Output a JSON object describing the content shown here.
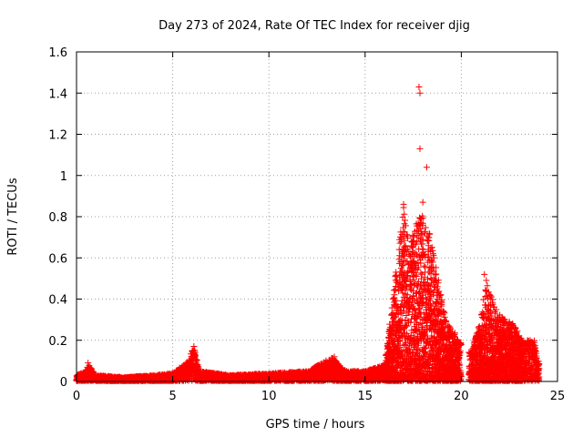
{
  "chart_data": {
    "type": "scatter",
    "title": "Day 273 of 2024, Rate Of TEC Index for receiver djig",
    "xlabel": "GPS time / hours",
    "ylabel": "ROTI / TECUs",
    "xlim": [
      0,
      25
    ],
    "ylim": [
      0,
      1.6
    ],
    "xticks": [
      0,
      5,
      10,
      15,
      20,
      25
    ],
    "yticks": [
      0,
      0.2,
      0.4,
      0.6,
      0.8,
      1,
      1.2,
      1.4,
      1.6
    ],
    "xtick_labels": [
      "0",
      "5",
      "10",
      "15",
      "20",
      "25"
    ],
    "ytick_labels": [
      "0",
      "0.2",
      "0.4",
      "0.6",
      "0.8",
      "1",
      "1.2",
      "1.4",
      "1.6"
    ],
    "grid": true,
    "marker": "plus",
    "color": "#ff0000",
    "notable_points": [
      {
        "x": 17.8,
        "y": 1.43
      },
      {
        "x": 17.85,
        "y": 1.4
      },
      {
        "x": 17.85,
        "y": 1.13
      },
      {
        "x": 18.2,
        "y": 1.04
      },
      {
        "x": 18.0,
        "y": 0.87
      },
      {
        "x": 17.0,
        "y": 0.86
      },
      {
        "x": 21.2,
        "y": 0.52
      },
      {
        "x": 6.1,
        "y": 0.17
      },
      {
        "x": 0.6,
        "y": 0.09
      },
      {
        "x": 13.4,
        "y": 0.12
      }
    ],
    "envelope": [
      {
        "x": 0.0,
        "y": 0.03
      },
      {
        "x": 0.5,
        "y": 0.05
      },
      {
        "x": 0.6,
        "y": 0.09
      },
      {
        "x": 1.0,
        "y": 0.03
      },
      {
        "x": 2.5,
        "y": 0.02
      },
      {
        "x": 4.0,
        "y": 0.03
      },
      {
        "x": 5.0,
        "y": 0.04
      },
      {
        "x": 5.8,
        "y": 0.1
      },
      {
        "x": 6.1,
        "y": 0.17
      },
      {
        "x": 6.4,
        "y": 0.05
      },
      {
        "x": 8.0,
        "y": 0.03
      },
      {
        "x": 10.0,
        "y": 0.04
      },
      {
        "x": 12.0,
        "y": 0.05
      },
      {
        "x": 13.3,
        "y": 0.12
      },
      {
        "x": 14.0,
        "y": 0.05
      },
      {
        "x": 15.0,
        "y": 0.05
      },
      {
        "x": 16.0,
        "y": 0.08
      },
      {
        "x": 16.5,
        "y": 0.45
      },
      {
        "x": 16.8,
        "y": 0.7
      },
      {
        "x": 17.0,
        "y": 0.85
      },
      {
        "x": 17.3,
        "y": 0.65
      },
      {
        "x": 17.6,
        "y": 0.75
      },
      {
        "x": 18.0,
        "y": 0.85
      },
      {
        "x": 18.4,
        "y": 0.7
      },
      {
        "x": 18.8,
        "y": 0.5
      },
      {
        "x": 19.2,
        "y": 0.3
      },
      {
        "x": 19.6,
        "y": 0.25
      },
      {
        "x": 19.9,
        "y": 0.2
      },
      {
        "x": 20.5,
        "y": 0.14
      },
      {
        "x": 21.0,
        "y": 0.3
      },
      {
        "x": 21.3,
        "y": 0.5
      },
      {
        "x": 21.8,
        "y": 0.35
      },
      {
        "x": 22.3,
        "y": 0.3
      },
      {
        "x": 22.7,
        "y": 0.28
      },
      {
        "x": 23.2,
        "y": 0.2
      },
      {
        "x": 23.8,
        "y": 0.2
      },
      {
        "x": 24.0,
        "y": 0.1
      }
    ],
    "data_gap": [
      20.0,
      20.4
    ]
  }
}
